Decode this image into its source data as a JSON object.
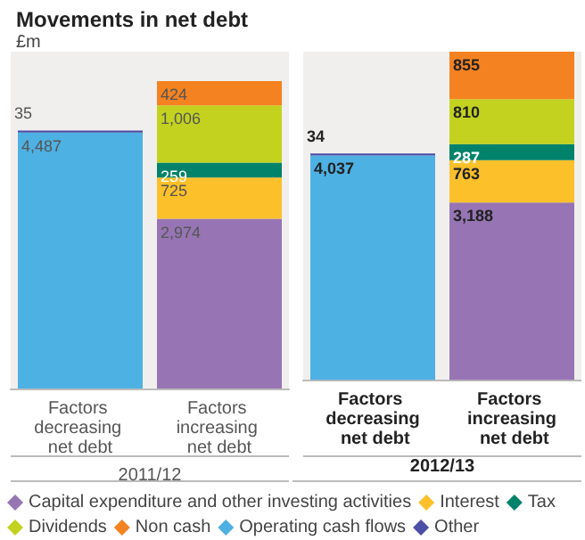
{
  "chart_data": [
    {
      "type": "bar",
      "title": "Movements in net debt",
      "ylabel": "£m",
      "xlabel": "2011/12",
      "categories": [
        "Factors decreasing net debt",
        "Factors increasing net debt"
      ],
      "stacked": true,
      "legend": "bottom",
      "series": [
        {
          "name": "Capital expenditure and other investing activities",
          "color": "#9775b4",
          "values": [
            null,
            2974
          ],
          "value_labels": [
            null,
            "2,974"
          ]
        },
        {
          "name": "Interest",
          "color": "#fcc02a",
          "values": [
            null,
            725
          ],
          "value_labels": [
            null,
            "725"
          ]
        },
        {
          "name": "Tax",
          "color": "#00836a",
          "values": [
            null,
            259
          ],
          "value_labels": [
            null,
            "259"
          ]
        },
        {
          "name": "Dividends",
          "color": "#c3d21f",
          "values": [
            null,
            1006
          ],
          "value_labels": [
            null,
            "1,006"
          ]
        },
        {
          "name": "Non cash",
          "color": "#f58220",
          "values": [
            null,
            424
          ],
          "value_labels": [
            null,
            "424"
          ]
        },
        {
          "name": "Operating cash flows",
          "color": "#4eb1e3",
          "values": [
            4487,
            null
          ],
          "value_labels": [
            "4,487",
            null
          ]
        },
        {
          "name": "Other",
          "color": "#4b4fa5",
          "values": [
            35,
            null
          ],
          "value_labels": [
            "35",
            null
          ]
        }
      ]
    },
    {
      "type": "bar",
      "xlabel": "2012/13",
      "categories": [
        "Factors decreasing net debt",
        "Factors increasing net debt"
      ],
      "stacked": true,
      "series": [
        {
          "color": "#9775b4",
          "values": [
            null,
            3188
          ],
          "value_labels": [
            null,
            "3,188"
          ]
        },
        {
          "color": "#fcc02a",
          "values": [
            null,
            763
          ],
          "value_labels": [
            null,
            "763"
          ]
        },
        {
          "color": "#00836a",
          "values": [
            null,
            287
          ],
          "value_labels": [
            null,
            "287"
          ]
        },
        {
          "color": "#c3d21f",
          "values": [
            null,
            810
          ],
          "value_labels": [
            null,
            "810"
          ]
        },
        {
          "color": "#f58220",
          "values": [
            null,
            855
          ],
          "value_labels": [
            null,
            "855"
          ]
        },
        {
          "color": "#4eb1e3",
          "values": [
            4037,
            null
          ],
          "value_labels": [
            "4,037",
            null
          ]
        },
        {
          "color": "#4b4fa5",
          "values": [
            34,
            null
          ],
          "value_labels": [
            "34",
            null
          ]
        }
      ]
    }
  ]
}
